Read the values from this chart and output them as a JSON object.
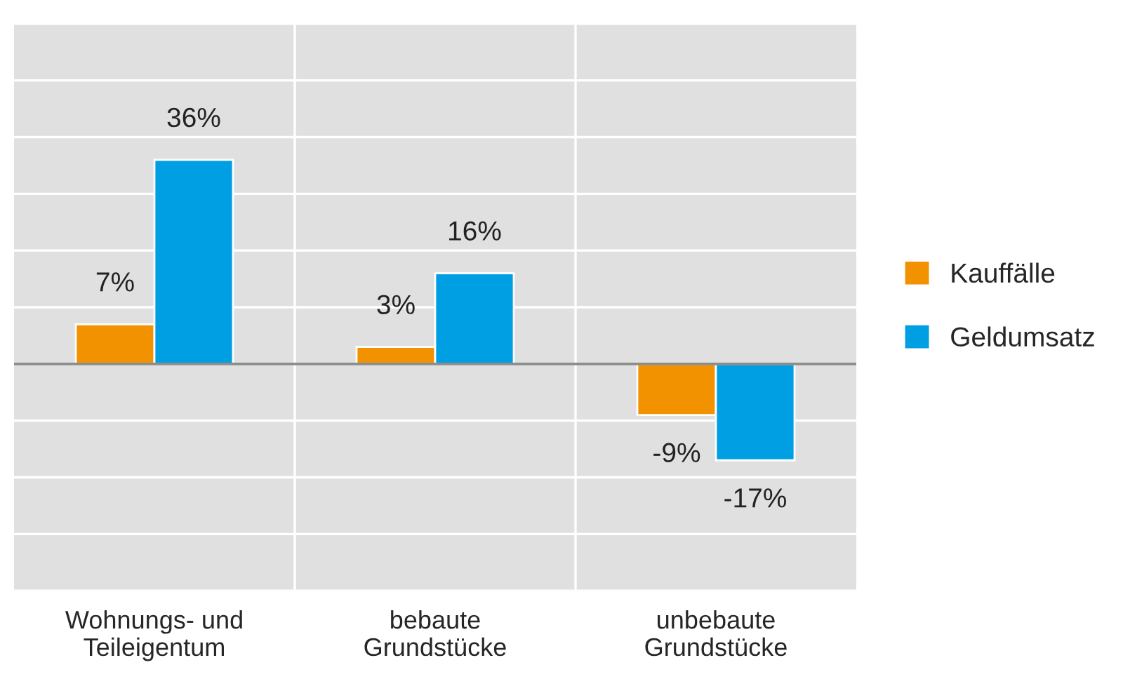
{
  "chart_data": {
    "type": "bar",
    "categories": [
      "Wohnungs- und\nTeileigentum",
      "bebaute\nGrundstücke",
      "unbebaute\nGrundstücke"
    ],
    "series": [
      {
        "name": "Kauffälle",
        "color": "#f39200",
        "values": [
          7,
          3,
          -9
        ],
        "value_labels": [
          "7%",
          "3%",
          "-9%"
        ]
      },
      {
        "name": "Geldumsatz",
        "color": "#009fe3",
        "values": [
          36,
          16,
          -17
        ],
        "value_labels": [
          "36%",
          "16%",
          "-17%"
        ]
      }
    ],
    "ylim": [
      -40,
      60
    ],
    "yticks": [
      {
        "value": -40,
        "label": null
      },
      {
        "value": -30,
        "label": null
      },
      {
        "value": -20,
        "label": null
      },
      {
        "value": -10,
        "label": null
      },
      {
        "value": 0,
        "label": null
      },
      {
        "value": 10,
        "label": null
      },
      {
        "value": 20,
        "label": null
      },
      {
        "value": 30,
        "label": null
      },
      {
        "value": 40,
        "label": null
      },
      {
        "value": 50,
        "label": null
      },
      {
        "value": 60,
        "label": null
      }
    ],
    "ref_lines": [
      {
        "axis": "y",
        "value": 0,
        "color": "#8c8c8c"
      }
    ],
    "grid": true,
    "legend": "right",
    "tick_labels": "x"
  }
}
